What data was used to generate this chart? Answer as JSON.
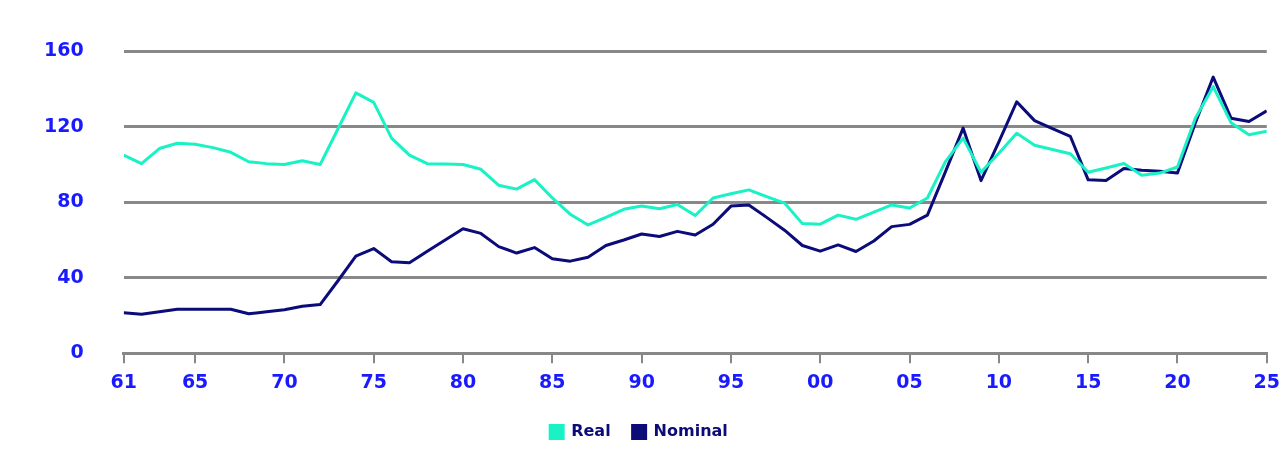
{
  "chart_data": {
    "type": "line",
    "x": [
      1961,
      1962,
      1963,
      1964,
      1965,
      1966,
      1967,
      1968,
      1969,
      1970,
      1971,
      1972,
      1973,
      1974,
      1975,
      1976,
      1977,
      1978,
      1979,
      1980,
      1981,
      1982,
      1983,
      1984,
      1985,
      1986,
      1987,
      1988,
      1989,
      1990,
      1991,
      1992,
      1993,
      1994,
      1995,
      1996,
      1997,
      1998,
      1999,
      2000,
      2001,
      2002,
      2003,
      2004,
      2005,
      2006,
      2007,
      2008,
      2009,
      2010,
      2011,
      2012,
      2013,
      2014,
      2015,
      2016,
      2017,
      2018,
      2019,
      2020,
      2021,
      2022,
      2023,
      2024,
      2025
    ],
    "series": [
      {
        "name": "Real",
        "color": "#19f2c4",
        "values": [
          105,
          100.5,
          108.5,
          111.3,
          110.8,
          109,
          106.5,
          101.5,
          100.5,
          100,
          102,
          100,
          119,
          138,
          133,
          114,
          105,
          100.5,
          100.3,
          100,
          97.5,
          89,
          87,
          92,
          82.3,
          73.7,
          68,
          72,
          76.3,
          78,
          76.6,
          78.8,
          73,
          82.3,
          84.5,
          86.6,
          83,
          79.6,
          68.7,
          68.4,
          73.2,
          71,
          74.8,
          78.6,
          77,
          82.3,
          101.4,
          114,
          95.9,
          106,
          116.6,
          110.2,
          108,
          105.7,
          95.9,
          98.2,
          100.6,
          94.3,
          95.5,
          98.7,
          124.6,
          141.3,
          122.2,
          115.8,
          117.7
        ]
      },
      {
        "name": "Nominal",
        "color": "#0b0b7a",
        "values": [
          21.4,
          20.6,
          22,
          23.3,
          23.3,
          23.3,
          23.3,
          20.9,
          22,
          23,
          24.9,
          25.8,
          38.4,
          51.5,
          55.5,
          48.5,
          48,
          54,
          60,
          66,
          63.5,
          56.5,
          53.1,
          56,
          50.1,
          48.8,
          50.9,
          57.1,
          60,
          63.2,
          61.9,
          64.6,
          62.7,
          68.4,
          78,
          78.6,
          72,
          65.2,
          57.1,
          54.1,
          57.4,
          53.9,
          59.5,
          67.1,
          68.3,
          73.2,
          96,
          119.3,
          91.5,
          112,
          133.3,
          123.3,
          119,
          115,
          91.9,
          91.5,
          97.9,
          97,
          96.5,
          95.5,
          122,
          146.4,
          124.6,
          122.8,
          128.5
        ]
      }
    ],
    "xlim": [
      1961,
      2025
    ],
    "xticks": [
      {
        "value": 1961,
        "label": "61"
      },
      {
        "value": 1965,
        "label": "65"
      },
      {
        "value": 1970,
        "label": "70"
      },
      {
        "value": 1975,
        "label": "75"
      },
      {
        "value": 1980,
        "label": "80"
      },
      {
        "value": 1985,
        "label": "85"
      },
      {
        "value": 1990,
        "label": "90"
      },
      {
        "value": 1995,
        "label": "95"
      },
      {
        "value": 2000,
        "label": "00"
      },
      {
        "value": 2005,
        "label": "05"
      },
      {
        "value": 2010,
        "label": "10"
      },
      {
        "value": 2015,
        "label": "15"
      },
      {
        "value": 2020,
        "label": "20"
      },
      {
        "value": 2025,
        "label": "25"
      }
    ],
    "ylim": [
      0,
      160
    ],
    "yticks": [
      0,
      40,
      80,
      120,
      160
    ],
    "grid": "y",
    "legend": "bottom",
    "marker": "none",
    "line_style": "solid"
  }
}
